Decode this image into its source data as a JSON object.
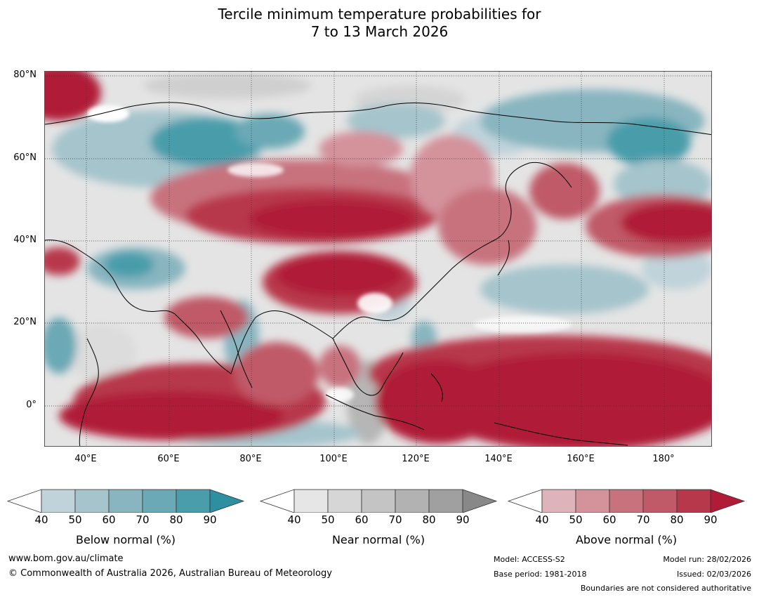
{
  "title": {
    "line1": "Tercile minimum temperature probabilities for",
    "line2": "7 to 13 March 2026"
  },
  "map": {
    "lat_labels": [
      "80°N",
      "60°N",
      "40°N",
      "20°N",
      "0°"
    ],
    "lon_labels": [
      "40°E",
      "60°E",
      "80°E",
      "100°E",
      "120°E",
      "140°E",
      "160°E",
      "180°"
    ],
    "colors": {
      "below": [
        "#c0d3da",
        "#a5c4cc",
        "#88b5c0",
        "#6aa9b5",
        "#4a9dab",
        "#2e8fa0"
      ],
      "near": [
        "#e6e6e6",
        "#d6d6d6",
        "#c4c4c4",
        "#b2b2b2",
        "#a0a0a0",
        "#888888"
      ],
      "above": [
        "#deb4ba",
        "#d4929b",
        "#c8727e",
        "#c05a68",
        "#b8384b",
        "#b01c37"
      ]
    }
  },
  "colorbars": [
    {
      "title": "Below normal (%)",
      "ticks": [
        "40",
        "50",
        "60",
        "70",
        "80",
        "90"
      ]
    },
    {
      "title": "Near normal (%)",
      "ticks": [
        "40",
        "50",
        "60",
        "70",
        "80",
        "90"
      ]
    },
    {
      "title": "Above normal (%)",
      "ticks": [
        "40",
        "50",
        "60",
        "70",
        "80",
        "90"
      ]
    }
  ],
  "footer": {
    "website": "www.bom.gov.au/climate",
    "copyright": "© Commonwealth of Australia 2026, Australian Bureau of Meteorology",
    "model": "Model: ACCESS-S2",
    "base_period": "Base period: 1981-2018",
    "model_run": "Model run: 28/02/2026",
    "issued": "Issued: 02/03/2026",
    "disclaimer": "Boundaries are not considered authoritative"
  }
}
